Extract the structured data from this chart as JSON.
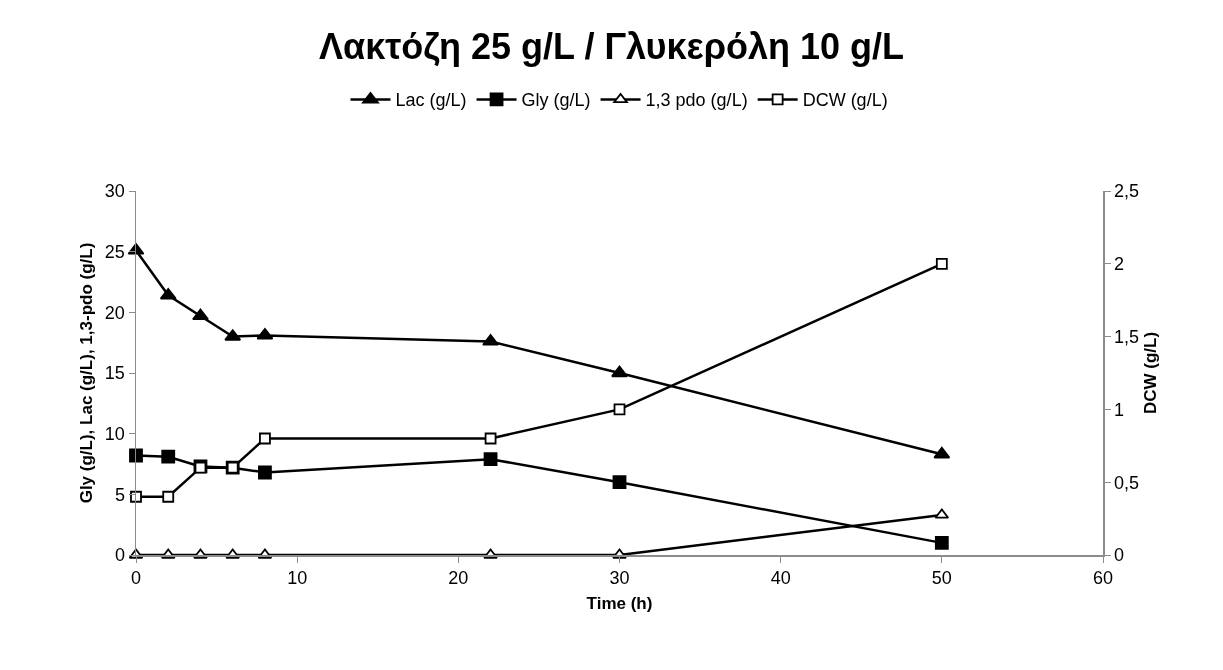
{
  "chart_data": {
    "type": "line",
    "title": "Λακτόζη 25 g/L / Γλυκερόλη 10 g/L",
    "xlabel": "Time (h)",
    "ylabel": "Gly (g/L), Lac (g/L), 1,3-pdo (g/L)",
    "y2label": "DCW (g/L)",
    "x": [
      0,
      2,
      4,
      6,
      8,
      22,
      30,
      50
    ],
    "series": [
      {
        "name": "Lac (g/L)",
        "color": "#000000",
        "marker": "triangle",
        "values": [
          25.1,
          21.4,
          19.7,
          18.0,
          18.1,
          17.6,
          15.0,
          8.3
        ]
      },
      {
        "name": "Gly (g/L)",
        "color": "#000000",
        "marker": "square",
        "values": [
          8.2,
          8.1,
          7.3,
          7.2,
          6.8,
          7.9,
          6.0,
          1.0
        ]
      },
      {
        "name": "1,3 pdo (g/L)",
        "color": "#000000",
        "marker": "triangle",
        "values": [
          0,
          0,
          0,
          0,
          0,
          0,
          0,
          3.3
        ]
      },
      {
        "name": "DCW (g/L)",
        "color": "#000000",
        "marker": "square",
        "axis": "y2",
        "values": [
          0.4,
          0.4,
          0.6,
          0.6,
          0.8,
          0.8,
          1.0,
          2.0
        ]
      }
    ],
    "xlim": [
      0,
      60
    ],
    "xticks": [
      0,
      10,
      20,
      30,
      40,
      50,
      60
    ],
    "ylim": [
      0,
      30
    ],
    "yticks": [
      0,
      5,
      10,
      15,
      20,
      25,
      30
    ],
    "y2lim": [
      0,
      2.5
    ],
    "y2ticks": [
      0,
      {
        "value": 0.5,
        "label": "0,5"
      },
      1,
      {
        "value": 1.5,
        "label": "1,5"
      },
      2,
      {
        "value": 2.5,
        "label": "2,5"
      }
    ],
    "grid": false,
    "legend": "top",
    "line_style": "solid"
  }
}
